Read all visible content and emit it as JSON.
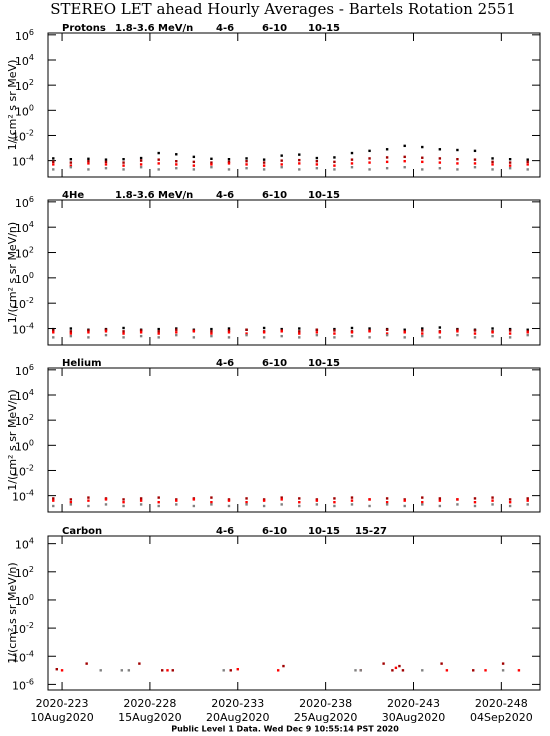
{
  "title": "STEREO LET ahead Hourly Averages - Bartels Rotation 2551",
  "footer": "Public Level 1 Data. Wed Dec  9 10:55:14 PST 2020",
  "chart_data": [
    {
      "type": "scatter",
      "title": "Protons",
      "ylabel": "1/(cm² s sr MeV)",
      "log_scale": true,
      "xlim": [
        222.2,
        250.2
      ],
      "xticks": [
        223,
        228,
        233,
        238,
        243,
        248
      ],
      "ylim": [
        5e-06,
        1400000
      ],
      "yticks": [
        {
          "value": 1000000,
          "label": "10",
          "sup": "6"
        },
        {
          "value": 10000,
          "label": "10",
          "sup": "4"
        },
        {
          "value": 100,
          "label": "10",
          "sup": "2"
        },
        {
          "value": 1,
          "label": "10",
          "sup": "0"
        },
        {
          "value": 0.01,
          "label": "10",
          "sup": "-2"
        },
        {
          "value": 0.0001,
          "label": "10",
          "sup": "-4"
        }
      ],
      "x": [
        222.5,
        223.5,
        224.5,
        225.5,
        226.5,
        227.5,
        228.5,
        229.5,
        230.5,
        231.5,
        232.5,
        233.5,
        234.5,
        235.5,
        236.5,
        237.5,
        238.5,
        239.5,
        240.5,
        241.5,
        242.5,
        243.5,
        244.5,
        245.5,
        246.5,
        247.5,
        248.5,
        249.5
      ],
      "series": [
        {
          "name": "1.8-3.6 MeV/n",
          "color": "#000000",
          "values": [
            0.00015,
            0.00013,
            0.00014,
            0.00012,
            0.00013,
            0.00016,
            0.0004,
            0.00032,
            0.0002,
            0.00014,
            0.00013,
            0.00015,
            0.00012,
            0.00025,
            0.0003,
            0.00016,
            0.00018,
            0.0004,
            0.0006,
            0.0008,
            0.0015,
            0.0012,
            0.0008,
            0.0007,
            0.0006,
            0.00015,
            0.00013,
            0.00012
          ]
        },
        {
          "name": "4-6",
          "color": "#a00000",
          "values": [
            8e-05,
            7e-05,
            9e-05,
            8e-05,
            7e-05,
            0.0001,
            0.00012,
            9e-05,
            8e-05,
            7e-05,
            8e-05,
            9e-05,
            7e-05,
            0.0001,
            0.00011,
            9e-05,
            8e-05,
            0.00012,
            0.00015,
            0.00018,
            0.0002,
            0.00017,
            0.00015,
            0.00013,
            0.00012,
            8e-05,
            7e-05,
            8e-05
          ]
        },
        {
          "name": "6-10",
          "color": "#ff0000",
          "values": [
            5e-05,
            4e-05,
            6e-05,
            5e-05,
            4e-05,
            5e-05,
            6e-05,
            5e-05,
            4e-05,
            5e-05,
            6e-05,
            5e-05,
            4e-05,
            5e-05,
            6e-05,
            5e-05,
            4e-05,
            6e-05,
            7e-05,
            8e-05,
            9e-05,
            8e-05,
            7e-05,
            6e-05,
            6e-05,
            5e-05,
            4e-05,
            5e-05
          ]
        },
        {
          "name": "10-15",
          "color": "#808080",
          "values": [
            2e-05,
            3e-05,
            2e-05,
            2.5e-05,
            2e-05,
            3e-05,
            2e-05,
            2.5e-05,
            2e-05,
            3e-05,
            2e-05,
            2.5e-05,
            2e-05,
            3e-05,
            2e-05,
            2.5e-05,
            2e-05,
            3e-05,
            2e-05,
            2.5e-05,
            3e-05,
            2e-05,
            2.5e-05,
            2e-05,
            3e-05,
            2e-05,
            2.5e-05,
            2e-05
          ]
        }
      ]
    },
    {
      "type": "scatter",
      "title": "4He",
      "ylabel": "1/(cm² s sr MeV/n)",
      "log_scale": true,
      "xlim": [
        222.2,
        250.2
      ],
      "xticks": [
        223,
        228,
        233,
        238,
        243,
        248
      ],
      "ylim": [
        5e-06,
        1400000
      ],
      "yticks": [
        {
          "value": 1000000,
          "label": "10",
          "sup": "6"
        },
        {
          "value": 10000,
          "label": "10",
          "sup": "4"
        },
        {
          "value": 100,
          "label": "10",
          "sup": "2"
        },
        {
          "value": 1,
          "label": "10",
          "sup": "0"
        },
        {
          "value": 0.01,
          "label": "10",
          "sup": "-2"
        },
        {
          "value": 0.0001,
          "label": "10",
          "sup": "-4"
        }
      ],
      "x": [
        222.5,
        223.5,
        224.5,
        225.5,
        226.5,
        227.5,
        228.5,
        229.5,
        230.5,
        231.5,
        232.5,
        233.5,
        234.5,
        235.5,
        236.5,
        237.5,
        238.5,
        239.5,
        240.5,
        241.5,
        242.5,
        243.5,
        244.5,
        245.5,
        246.5,
        247.5,
        248.5,
        249.5
      ],
      "series": [
        {
          "name": "1.8-3.6 MeV/n",
          "color": "#000000",
          "values": [
            9e-05,
            0.0001,
            8e-05,
            9e-05,
            0.00011,
            8e-05,
            9e-05,
            0.0001,
            8e-05,
            9e-05,
            0.0001,
            8e-05,
            0.00011,
            9e-05,
            0.0001,
            8e-05,
            9e-05,
            0.00011,
            0.0001,
            9e-05,
            8e-05,
            0.0001,
            0.00012,
            9e-05,
            8e-05,
            0.0001,
            9e-05,
            8e-05
          ]
        },
        {
          "name": "4-6",
          "color": "#a00000",
          "values": [
            7e-05,
            6e-05,
            7e-05,
            8e-05,
            6e-05,
            7e-05,
            6e-05,
            8e-05,
            7e-05,
            6e-05,
            7e-05,
            8e-05,
            6e-05,
            7e-05,
            6e-05,
            8e-05,
            7e-05,
            6e-05,
            7e-05,
            8e-05,
            6e-05,
            7e-05,
            6e-05,
            8e-05,
            7e-05,
            6e-05,
            7e-05,
            6e-05
          ]
        },
        {
          "name": "6-10",
          "color": "#ff0000",
          "values": [
            5e-05,
            4e-05,
            5e-05,
            6e-05,
            4e-05,
            5e-05,
            4e-05,
            5e-05,
            6e-05,
            4e-05,
            5e-05,
            4e-05,
            5e-05,
            6e-05,
            4e-05,
            5e-05,
            4e-05,
            5e-05,
            6e-05,
            4e-05,
            5e-05,
            4e-05,
            5e-05,
            6e-05,
            4e-05,
            5e-05,
            4e-05,
            5e-05
          ]
        },
        {
          "name": "10-15",
          "color": "#808080",
          "values": [
            2e-05,
            2.5e-05,
            2e-05,
            3e-05,
            2e-05,
            2.5e-05,
            2e-05,
            3e-05,
            2e-05,
            2.5e-05,
            2e-05,
            3e-05,
            2e-05,
            2.5e-05,
            2e-05,
            3e-05,
            2e-05,
            2.5e-05,
            2e-05,
            3e-05,
            2e-05,
            2.5e-05,
            2e-05,
            3e-05,
            2e-05,
            2.5e-05,
            2e-05,
            3e-05
          ]
        }
      ]
    },
    {
      "type": "scatter",
      "title": "Helium",
      "ylabel": "1/(cm² s sr MeV/n)",
      "log_scale": true,
      "xlim": [
        222.2,
        250.2
      ],
      "xticks": [
        223,
        228,
        233,
        238,
        243,
        248
      ],
      "ylim": [
        5e-06,
        1400000
      ],
      "yticks": [
        {
          "value": 1000000,
          "label": "10",
          "sup": "6"
        },
        {
          "value": 10000,
          "label": "10",
          "sup": "4"
        },
        {
          "value": 100,
          "label": "10",
          "sup": "2"
        },
        {
          "value": 1,
          "label": "10",
          "sup": "0"
        },
        {
          "value": 0.01,
          "label": "10",
          "sup": "-2"
        },
        {
          "value": 0.0001,
          "label": "10",
          "sup": "-4"
        }
      ],
      "x": [
        222.5,
        223.5,
        224.5,
        225.5,
        226.5,
        227.5,
        228.5,
        229.5,
        230.5,
        231.5,
        232.5,
        233.5,
        234.5,
        235.5,
        236.5,
        237.5,
        238.5,
        239.5,
        240.5,
        241.5,
        242.5,
        243.5,
        244.5,
        245.5,
        246.5,
        247.5,
        248.5,
        249.5
      ],
      "series": [
        {
          "name": "4-6",
          "color": "#a00000",
          "values": [
            6e-05,
            5e-05,
            7e-05,
            6e-05,
            5e-05,
            6e-05,
            7e-05,
            5e-05,
            6e-05,
            7e-05,
            5e-05,
            6e-05,
            5e-05,
            7e-05,
            6e-05,
            5e-05,
            6e-05,
            7e-05,
            5e-05,
            6e-05,
            5e-05,
            7e-05,
            6e-05,
            5e-05,
            6e-05,
            7e-05,
            5e-05,
            6e-05
          ]
        },
        {
          "name": "6-10",
          "color": "#ff0000",
          "values": [
            4e-05,
            3e-05,
            4e-05,
            5e-05,
            3e-05,
            4e-05,
            3e-05,
            4e-05,
            5e-05,
            3e-05,
            4e-05,
            3e-05,
            4e-05,
            5e-05,
            3e-05,
            4e-05,
            3e-05,
            4e-05,
            5e-05,
            3e-05,
            4e-05,
            3e-05,
            4e-05,
            5e-05,
            3e-05,
            4e-05,
            3e-05,
            4e-05
          ]
        },
        {
          "name": "10-15",
          "color": "#808080",
          "values": [
            1.5e-05,
            2e-05,
            1.5e-05,
            2e-05,
            1.5e-05,
            2e-05,
            1.5e-05,
            2e-05,
            1.5e-05,
            2e-05,
            1.5e-05,
            2e-05,
            1.5e-05,
            2e-05,
            1.5e-05,
            2e-05,
            1.5e-05,
            2e-05,
            1.5e-05,
            2e-05,
            1.5e-05,
            2e-05,
            1.5e-05,
            2e-05,
            1.5e-05,
            2e-05,
            1.5e-05,
            2e-05
          ]
        }
      ]
    },
    {
      "type": "scatter",
      "title": "Carbon",
      "ylabel": "1/(cm² s sr MeV/n)",
      "log_scale": true,
      "xlim": [
        222.2,
        250.2
      ],
      "xticks": [
        {
          "value": 223,
          "label": "2020-223",
          "date": "10Aug2020"
        },
        {
          "value": 228,
          "label": "2020-228",
          "date": "15Aug2020"
        },
        {
          "value": 233,
          "label": "2020-233",
          "date": "20Aug2020"
        },
        {
          "value": 238,
          "label": "2020-238",
          "date": "25Aug2020"
        },
        {
          "value": 243,
          "label": "2020-243",
          "date": "30Aug2020"
        },
        {
          "value": 248,
          "label": "2020-248",
          "date": "04Sep2020"
        }
      ],
      "ylim": [
        4e-07,
        35000
      ],
      "yticks": [
        {
          "value": 10000,
          "label": "10",
          "sup": "4"
        },
        {
          "value": 100,
          "label": "10",
          "sup": "2"
        },
        {
          "value": 1,
          "label": "10",
          "sup": "0"
        },
        {
          "value": 0.01,
          "label": "10",
          "sup": "-2"
        },
        {
          "value": 0.0001,
          "label": "10",
          "sup": "-4"
        },
        {
          "value": 1e-06,
          "label": "10",
          "sup": "-6"
        }
      ],
      "series": [
        {
          "name": "4-6",
          "color": "#a00000",
          "x": [
            222.7,
            224.4,
            227.4,
            228.7,
            229.3,
            232.6,
            235.6,
            241.3,
            241.8,
            242.2,
            242.4,
            244.6,
            246.4,
            248.1
          ],
          "values": [
            1.2e-05,
            3e-05,
            3e-05,
            1e-05,
            1e-05,
            1e-05,
            2e-05,
            3e-05,
            1e-05,
            2e-05,
            1e-05,
            3e-05,
            1e-05,
            3e-05
          ]
        },
        {
          "name": "6-10",
          "color": "#ff0000",
          "x": [
            223.0,
            229.0,
            233.0,
            235.3,
            240.0,
            242.0,
            244.9,
            247.1,
            249.0
          ],
          "values": [
            1e-05,
            1e-05,
            1.2e-05,
            1e-05,
            1e-05,
            1.5e-05,
            1e-05,
            1e-05,
            1e-05
          ]
        },
        {
          "name": "10-15",
          "color": "#808080",
          "x": [
            225.2,
            226.4,
            226.8,
            232.2,
            239.7,
            240.0,
            243.5,
            248.1
          ],
          "values": [
            1e-05,
            1e-05,
            1e-05,
            1e-05,
            1e-05,
            1e-05,
            1e-05,
            1e-05
          ]
        },
        {
          "name": "15-27",
          "color": "#0000ff",
          "x": [],
          "values": []
        }
      ]
    }
  ]
}
